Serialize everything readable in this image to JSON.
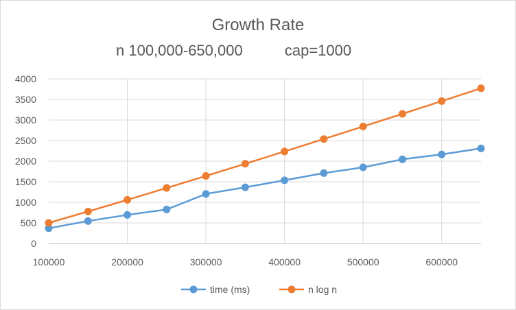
{
  "chart_data": {
    "type": "line",
    "title": "Growth Rate",
    "subtitle": "n 100,000-650,000          cap=1000",
    "xlabel": "",
    "ylabel": "",
    "x": [
      100000,
      150000,
      200000,
      250000,
      300000,
      350000,
      400000,
      450000,
      500000,
      550000,
      600000,
      650000
    ],
    "x_ticks": [
      100000,
      200000,
      300000,
      400000,
      500000,
      600000
    ],
    "y_ticks": [
      0,
      500,
      1000,
      1500,
      2000,
      2500,
      3000,
      3500,
      4000
    ],
    "xlim": [
      100000,
      650000
    ],
    "ylim": [
      0,
      4000
    ],
    "grid": "horizontal",
    "legend": "bottom",
    "series": [
      {
        "name": "time (ms)",
        "color": "#5b9bd5",
        "values": [
          370,
          545,
          695,
          825,
          1205,
          1365,
          1535,
          1710,
          1850,
          2045,
          2165,
          2310
        ]
      },
      {
        "name": "n log n",
        "color": "#ed7d31",
        "values": [
          500,
          777,
          1060,
          1349,
          1641,
          1937,
          2236,
          2538,
          2843,
          3150,
          3460,
          3772
        ]
      }
    ]
  }
}
